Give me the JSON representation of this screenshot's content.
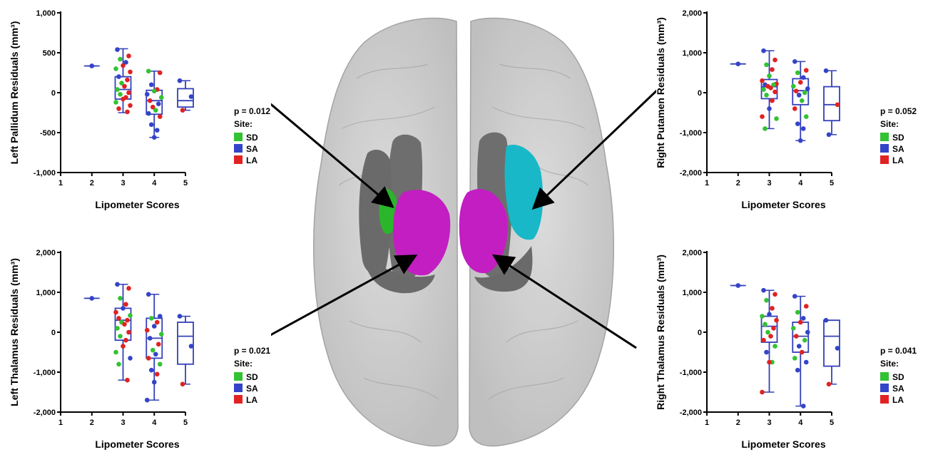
{
  "colors": {
    "SD": "#33c233",
    "SA": "#3344c8",
    "LA": "#e02222",
    "box": "#3340b8",
    "brain": "#cfcfcf",
    "gray": "#6e6e6e",
    "green": "#2bb52b",
    "cyan": "#18b8c8",
    "magenta": "#c21ec2"
  },
  "chart_data": [
    {
      "type": "scatter",
      "panel": "top-left",
      "ylabel": "Left Pallidum Residuals (mm³)",
      "xlabel": "Lipometer Scores",
      "xlim": [
        1,
        5
      ],
      "ylim": [
        -1000,
        1000
      ],
      "yticks": [
        -1000,
        -500,
        0,
        500,
        1000
      ],
      "ytick_labels": [
        "-1,000",
        "-500",
        "0",
        "500",
        "1,000"
      ],
      "xticks": [
        1,
        2,
        3,
        4,
        5
      ],
      "xtick_labels": [
        "1",
        "2",
        "3",
        "4",
        "5"
      ],
      "p_value": "p = 0.012",
      "legend_title": "Site:",
      "legend": [
        "SD",
        "SA",
        "LA"
      ],
      "boxes": [
        {
          "x": 2,
          "min": 335,
          "q1": 335,
          "median": 335,
          "q3": 335,
          "max": 335
        },
        {
          "x": 3,
          "min": -250,
          "q1": -80,
          "median": 40,
          "q3": 200,
          "max": 550
        },
        {
          "x": 4,
          "min": -560,
          "q1": -270,
          "median": -100,
          "q3": 30,
          "max": 270
        },
        {
          "x": 5,
          "min": -220,
          "q1": -180,
          "median": -100,
          "q3": 50,
          "max": 150
        }
      ],
      "points": [
        {
          "x": 2,
          "y": 335,
          "site": "SA"
        },
        {
          "x": 3,
          "y": 540,
          "site": "SA"
        },
        {
          "x": 3,
          "y": 460,
          "site": "LA"
        },
        {
          "x": 3,
          "y": 420,
          "site": "SD"
        },
        {
          "x": 3,
          "y": 380,
          "site": "SA"
        },
        {
          "x": 3,
          "y": 340,
          "site": "LA"
        },
        {
          "x": 3,
          "y": 300,
          "site": "SD"
        },
        {
          "x": 3,
          "y": 260,
          "site": "LA"
        },
        {
          "x": 3,
          "y": 200,
          "site": "SA"
        },
        {
          "x": 3,
          "y": 160,
          "site": "LA"
        },
        {
          "x": 3,
          "y": 120,
          "site": "SD"
        },
        {
          "x": 3,
          "y": 80,
          "site": "LA"
        },
        {
          "x": 3,
          "y": 40,
          "site": "SD"
        },
        {
          "x": 3,
          "y": 0,
          "site": "LA"
        },
        {
          "x": 3,
          "y": -20,
          "site": "SD"
        },
        {
          "x": 3,
          "y": -60,
          "site": "LA"
        },
        {
          "x": 3,
          "y": -80,
          "site": "LA"
        },
        {
          "x": 3,
          "y": -120,
          "site": "SD"
        },
        {
          "x": 3,
          "y": -160,
          "site": "LA"
        },
        {
          "x": 3,
          "y": -200,
          "site": "LA"
        },
        {
          "x": 3,
          "y": -240,
          "site": "LA"
        },
        {
          "x": 4,
          "y": 270,
          "site": "SD"
        },
        {
          "x": 4,
          "y": 250,
          "site": "LA"
        },
        {
          "x": 4,
          "y": 100,
          "site": "SA"
        },
        {
          "x": 4,
          "y": 40,
          "site": "LA"
        },
        {
          "x": 4,
          "y": 20,
          "site": "SD"
        },
        {
          "x": 4,
          "y": -20,
          "site": "SA"
        },
        {
          "x": 4,
          "y": -60,
          "site": "SD"
        },
        {
          "x": 4,
          "y": -100,
          "site": "LA"
        },
        {
          "x": 4,
          "y": -140,
          "site": "SA"
        },
        {
          "x": 4,
          "y": -180,
          "site": "LA"
        },
        {
          "x": 4,
          "y": -220,
          "site": "SD"
        },
        {
          "x": 4,
          "y": -260,
          "site": "SA"
        },
        {
          "x": 4,
          "y": -300,
          "site": "LA"
        },
        {
          "x": 4,
          "y": -400,
          "site": "SA"
        },
        {
          "x": 4,
          "y": -470,
          "site": "SA"
        },
        {
          "x": 4,
          "y": -560,
          "site": "SA"
        },
        {
          "x": 5,
          "y": 150,
          "site": "SA"
        },
        {
          "x": 5,
          "y": -50,
          "site": "SA"
        },
        {
          "x": 5,
          "y": -220,
          "site": "LA"
        }
      ]
    },
    {
      "type": "scatter",
      "panel": "top-right",
      "ylabel": "Right Putamen Residuals (mm³)",
      "xlabel": "Lipometer Scores",
      "xlim": [
        1,
        5
      ],
      "ylim": [
        -2000,
        2000
      ],
      "yticks": [
        -2000,
        -1000,
        0,
        1000,
        2000
      ],
      "ytick_labels": [
        "-2,000",
        "-1,000",
        "0",
        "1,000",
        "2,000"
      ],
      "xticks": [
        1,
        2,
        3,
        4,
        5
      ],
      "xtick_labels": [
        "1",
        "2",
        "3",
        "4",
        "5"
      ],
      "p_value": "p = 0.052",
      "legend_title": "Site:",
      "legend": [
        "SD",
        "SA",
        "LA"
      ],
      "boxes": [
        {
          "x": 2,
          "min": 720,
          "q1": 720,
          "median": 720,
          "q3": 720,
          "max": 720
        },
        {
          "x": 3,
          "min": -900,
          "q1": -150,
          "median": 150,
          "q3": 330,
          "max": 1050
        },
        {
          "x": 4,
          "min": -1200,
          "q1": -300,
          "median": 50,
          "q3": 350,
          "max": 780
        },
        {
          "x": 5,
          "min": -1050,
          "q1": -700,
          "median": -300,
          "q3": 150,
          "max": 550
        }
      ],
      "points": [
        {
          "x": 2,
          "y": 720,
          "site": "SA"
        },
        {
          "x": 3,
          "y": 1050,
          "site": "SA"
        },
        {
          "x": 3,
          "y": 820,
          "site": "LA"
        },
        {
          "x": 3,
          "y": 700,
          "site": "SD"
        },
        {
          "x": 3,
          "y": 580,
          "site": "LA"
        },
        {
          "x": 3,
          "y": 420,
          "site": "SD"
        },
        {
          "x": 3,
          "y": 300,
          "site": "LA"
        },
        {
          "x": 3,
          "y": 220,
          "site": "LA"
        },
        {
          "x": 3,
          "y": 200,
          "site": "SA"
        },
        {
          "x": 3,
          "y": 200,
          "site": "SD"
        },
        {
          "x": 3,
          "y": 160,
          "site": "LA"
        },
        {
          "x": 3,
          "y": 120,
          "site": "LA"
        },
        {
          "x": 3,
          "y": 80,
          "site": "SD"
        },
        {
          "x": 3,
          "y": 20,
          "site": "LA"
        },
        {
          "x": 3,
          "y": -60,
          "site": "SD"
        },
        {
          "x": 3,
          "y": -200,
          "site": "LA"
        },
        {
          "x": 3,
          "y": -400,
          "site": "SA"
        },
        {
          "x": 3,
          "y": -600,
          "site": "LA"
        },
        {
          "x": 3,
          "y": -650,
          "site": "SD"
        },
        {
          "x": 3,
          "y": -900,
          "site": "SD"
        },
        {
          "x": 4,
          "y": 780,
          "site": "SA"
        },
        {
          "x": 4,
          "y": 560,
          "site": "LA"
        },
        {
          "x": 4,
          "y": 500,
          "site": "SD"
        },
        {
          "x": 4,
          "y": 380,
          "site": "SA"
        },
        {
          "x": 4,
          "y": 260,
          "site": "LA"
        },
        {
          "x": 4,
          "y": 160,
          "site": "SD"
        },
        {
          "x": 4,
          "y": 100,
          "site": "SA"
        },
        {
          "x": 4,
          "y": 40,
          "site": "LA"
        },
        {
          "x": 4,
          "y": 0,
          "site": "SD"
        },
        {
          "x": 4,
          "y": -60,
          "site": "SA"
        },
        {
          "x": 4,
          "y": -200,
          "site": "SD"
        },
        {
          "x": 4,
          "y": -400,
          "site": "LA"
        },
        {
          "x": 4,
          "y": -600,
          "site": "SD"
        },
        {
          "x": 4,
          "y": -780,
          "site": "SA"
        },
        {
          "x": 4,
          "y": -900,
          "site": "SA"
        },
        {
          "x": 4,
          "y": -1200,
          "site": "SA"
        },
        {
          "x": 5,
          "y": 550,
          "site": "SA"
        },
        {
          "x": 5,
          "y": -300,
          "site": "LA"
        },
        {
          "x": 5,
          "y": -1050,
          "site": "SA"
        }
      ]
    },
    {
      "type": "scatter",
      "panel": "bottom-left",
      "ylabel": "Left Thalamus Residuals (mm³)",
      "xlabel": "Lipometer Scores",
      "xlim": [
        1,
        5
      ],
      "ylim": [
        -2000,
        2000
      ],
      "yticks": [
        -2000,
        -1000,
        0,
        1000,
        2000
      ],
      "ytick_labels": [
        "-2,000",
        "-1,000",
        "0",
        "1,000",
        "2,000"
      ],
      "xticks": [
        1,
        2,
        3,
        4,
        5
      ],
      "xtick_labels": [
        "1",
        "2",
        "3",
        "4",
        "5"
      ],
      "p_value": "p = 0.021",
      "legend_title": "Site:",
      "legend": [
        "SD",
        "SA",
        "LA"
      ],
      "boxes": [
        {
          "x": 2,
          "min": 850,
          "q1": 850,
          "median": 850,
          "q3": 850,
          "max": 850
        },
        {
          "x": 3,
          "min": -1200,
          "q1": -200,
          "median": 300,
          "q3": 600,
          "max": 1200
        },
        {
          "x": 4,
          "min": -1700,
          "q1": -650,
          "median": -150,
          "q3": 350,
          "max": 950
        },
        {
          "x": 5,
          "min": -1300,
          "q1": -800,
          "median": -100,
          "q3": 250,
          "max": 400
        }
      ],
      "points": [
        {
          "x": 2,
          "y": 850,
          "site": "SA"
        },
        {
          "x": 3,
          "y": 1200,
          "site": "SA"
        },
        {
          "x": 3,
          "y": 1100,
          "site": "LA"
        },
        {
          "x": 3,
          "y": 850,
          "site": "SD"
        },
        {
          "x": 3,
          "y": 700,
          "site": "LA"
        },
        {
          "x": 3,
          "y": 600,
          "site": "SA"
        },
        {
          "x": 3,
          "y": 500,
          "site": "LA"
        },
        {
          "x": 3,
          "y": 420,
          "site": "SD"
        },
        {
          "x": 3,
          "y": 350,
          "site": "LA"
        },
        {
          "x": 3,
          "y": 300,
          "site": "LA"
        },
        {
          "x": 3,
          "y": 250,
          "site": "SD"
        },
        {
          "x": 3,
          "y": 200,
          "site": "LA"
        },
        {
          "x": 3,
          "y": 100,
          "site": "SD"
        },
        {
          "x": 3,
          "y": 0,
          "site": "LA"
        },
        {
          "x": 3,
          "y": -100,
          "site": "SD"
        },
        {
          "x": 3,
          "y": -200,
          "site": "LA"
        },
        {
          "x": 3,
          "y": -350,
          "site": "LA"
        },
        {
          "x": 3,
          "y": -500,
          "site": "SD"
        },
        {
          "x": 3,
          "y": -650,
          "site": "SA"
        },
        {
          "x": 3,
          "y": -800,
          "site": "SD"
        },
        {
          "x": 3,
          "y": -1200,
          "site": "LA"
        },
        {
          "x": 4,
          "y": 950,
          "site": "SA"
        },
        {
          "x": 4,
          "y": 400,
          "site": "SA"
        },
        {
          "x": 4,
          "y": 350,
          "site": "SD"
        },
        {
          "x": 4,
          "y": 250,
          "site": "LA"
        },
        {
          "x": 4,
          "y": 150,
          "site": "SA"
        },
        {
          "x": 4,
          "y": 50,
          "site": "LA"
        },
        {
          "x": 4,
          "y": -50,
          "site": "SD"
        },
        {
          "x": 4,
          "y": -150,
          "site": "SA"
        },
        {
          "x": 4,
          "y": -300,
          "site": "LA"
        },
        {
          "x": 4,
          "y": -450,
          "site": "SD"
        },
        {
          "x": 4,
          "y": -550,
          "site": "SA"
        },
        {
          "x": 4,
          "y": -650,
          "site": "LA"
        },
        {
          "x": 4,
          "y": -800,
          "site": "SD"
        },
        {
          "x": 4,
          "y": -950,
          "site": "SA"
        },
        {
          "x": 4,
          "y": -1050,
          "site": "LA"
        },
        {
          "x": 4,
          "y": -1250,
          "site": "SA"
        },
        {
          "x": 4,
          "y": -1700,
          "site": "SA"
        },
        {
          "x": 5,
          "y": 400,
          "site": "SA"
        },
        {
          "x": 5,
          "y": -350,
          "site": "SA"
        },
        {
          "x": 5,
          "y": -1300,
          "site": "LA"
        }
      ]
    },
    {
      "type": "scatter",
      "panel": "bottom-right",
      "ylabel": "Right Thalamus Residuals (mm³)",
      "xlabel": "Lipometer Scores",
      "xlim": [
        1,
        5
      ],
      "ylim": [
        -2000,
        2000
      ],
      "yticks": [
        -2000,
        -1000,
        0,
        1000,
        2000
      ],
      "ytick_labels": [
        "-2,000",
        "-1,000",
        "0",
        "1,000",
        "2,000"
      ],
      "xticks": [
        1,
        2,
        3,
        4,
        5
      ],
      "xtick_labels": [
        "1",
        "2",
        "3",
        "4",
        "5"
      ],
      "p_value": "p = 0.041",
      "legend_title": "Site:",
      "legend": [
        "SD",
        "SA",
        "LA"
      ],
      "boxes": [
        {
          "x": 2,
          "min": 1170,
          "q1": 1170,
          "median": 1170,
          "q3": 1170,
          "max": 1170
        },
        {
          "x": 3,
          "min": -1500,
          "q1": -250,
          "median": 150,
          "q3": 400,
          "max": 1050
        },
        {
          "x": 4,
          "min": -1850,
          "q1": -500,
          "median": -100,
          "q3": 250,
          "max": 900
        },
        {
          "x": 5,
          "min": -1300,
          "q1": -850,
          "median": -100,
          "q3": 300,
          "max": 300
        }
      ],
      "points": [
        {
          "x": 2,
          "y": 1170,
          "site": "SA"
        },
        {
          "x": 3,
          "y": 1050,
          "site": "SA"
        },
        {
          "x": 3,
          "y": 950,
          "site": "LA"
        },
        {
          "x": 3,
          "y": 800,
          "site": "SD"
        },
        {
          "x": 3,
          "y": 600,
          "site": "LA"
        },
        {
          "x": 3,
          "y": 450,
          "site": "SA"
        },
        {
          "x": 3,
          "y": 400,
          "site": "SD"
        },
        {
          "x": 3,
          "y": 300,
          "site": "LA"
        },
        {
          "x": 3,
          "y": 200,
          "site": "SD"
        },
        {
          "x": 3,
          "y": 100,
          "site": "LA"
        },
        {
          "x": 3,
          "y": 0,
          "site": "SD"
        },
        {
          "x": 3,
          "y": -100,
          "site": "LA"
        },
        {
          "x": 3,
          "y": -200,
          "site": "LA"
        },
        {
          "x": 3,
          "y": -350,
          "site": "SD"
        },
        {
          "x": 3,
          "y": -500,
          "site": "SA"
        },
        {
          "x": 3,
          "y": -750,
          "site": "SD"
        },
        {
          "x": 3,
          "y": -750,
          "site": "LA"
        },
        {
          "x": 3,
          "y": -1500,
          "site": "LA"
        },
        {
          "x": 4,
          "y": 900,
          "site": "SA"
        },
        {
          "x": 4,
          "y": 650,
          "site": "LA"
        },
        {
          "x": 4,
          "y": 500,
          "site": "SD"
        },
        {
          "x": 4,
          "y": 350,
          "site": "SA"
        },
        {
          "x": 4,
          "y": 250,
          "site": "LA"
        },
        {
          "x": 4,
          "y": 100,
          "site": "SD"
        },
        {
          "x": 4,
          "y": 0,
          "site": "SA"
        },
        {
          "x": 4,
          "y": -100,
          "site": "LA"
        },
        {
          "x": 4,
          "y": -200,
          "site": "SD"
        },
        {
          "x": 4,
          "y": -350,
          "site": "SA"
        },
        {
          "x": 4,
          "y": -500,
          "site": "LA"
        },
        {
          "x": 4,
          "y": -650,
          "site": "SD"
        },
        {
          "x": 4,
          "y": -750,
          "site": "SA"
        },
        {
          "x": 4,
          "y": -950,
          "site": "SA"
        },
        {
          "x": 4,
          "y": -1850,
          "site": "SA"
        },
        {
          "x": 5,
          "y": 300,
          "site": "SA"
        },
        {
          "x": 5,
          "y": -400,
          "site": "SA"
        },
        {
          "x": 5,
          "y": -1300,
          "site": "LA"
        }
      ]
    }
  ]
}
